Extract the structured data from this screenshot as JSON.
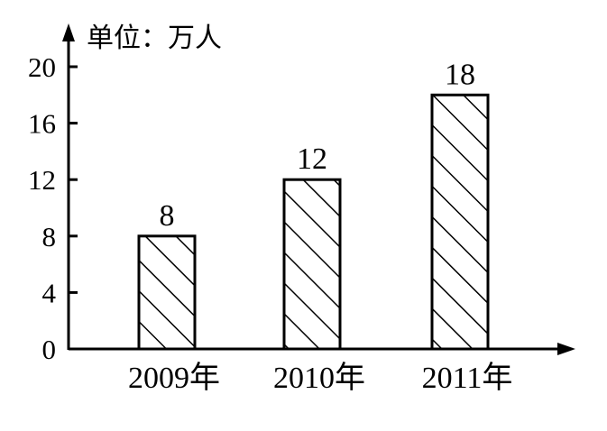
{
  "chart_data": {
    "type": "bar",
    "unit_label": "单位：万人",
    "categories": [
      "2009年",
      "2010年",
      "2011年"
    ],
    "values": [
      8,
      12,
      18
    ],
    "data_labels": [
      "8",
      "12",
      "18"
    ],
    "y_ticks": [
      "0",
      "4",
      "8",
      "12",
      "16",
      "20"
    ],
    "ylim": [
      0,
      20
    ],
    "bar_fill": "hatched",
    "grid": false,
    "colors": {
      "ink": "#000000",
      "background": "#ffffff"
    }
  }
}
